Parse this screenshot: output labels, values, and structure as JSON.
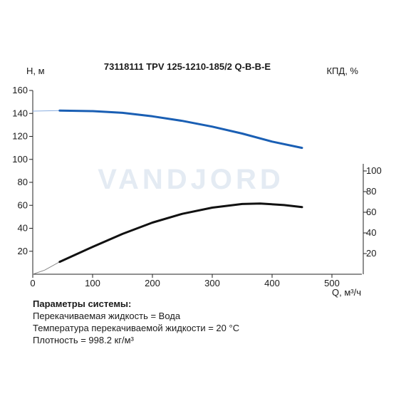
{
  "chart_data": {
    "type": "line",
    "title": "73118111 TPV 125-1210-185/2 Q-B-B-E",
    "xlabel": "Q, м³/ч",
    "ylabel_left": "H, м",
    "ylabel_right": "КПД, %",
    "watermark": "VANDJORD",
    "x_ticks": [
      "0",
      "100",
      "200",
      "300",
      "400",
      "500"
    ],
    "y_left_ticks": [
      "20",
      "40",
      "60",
      "80",
      "100",
      "120",
      "140",
      "160"
    ],
    "y_right_ticks": [
      "20",
      "40",
      "60",
      "80",
      "100"
    ],
    "xlim": [
      0,
      550
    ],
    "ylim_left": [
      0,
      160
    ],
    "ylim_right": [
      0,
      100
    ],
    "grid": false,
    "series": [
      {
        "axis": "left",
        "color": "#1a5fb4",
        "points": [
          [
            45,
            142.5
          ],
          [
            100,
            142
          ],
          [
            150,
            140.5
          ],
          [
            200,
            137.5
          ],
          [
            250,
            133.5
          ],
          [
            300,
            128.5
          ],
          [
            350,
            122.5
          ],
          [
            400,
            115.5
          ],
          [
            450,
            110
          ]
        ]
      },
      {
        "axis": "right",
        "color": "#111111",
        "points": [
          [
            45,
            12
          ],
          [
            100,
            26.5
          ],
          [
            150,
            39
          ],
          [
            200,
            50
          ],
          [
            250,
            58.5
          ],
          [
            300,
            64.5
          ],
          [
            350,
            68
          ],
          [
            380,
            68.5
          ],
          [
            420,
            67
          ],
          [
            450,
            65
          ]
        ]
      }
    ],
    "extrapolation": [
      {
        "axis": "left",
        "color": "#8aaee0",
        "points": [
          [
            0,
            142
          ],
          [
            45,
            142.5
          ]
        ]
      },
      {
        "axis": "right",
        "color": "#888888",
        "points": [
          [
            0,
            0
          ],
          [
            20,
            4
          ],
          [
            45,
            12
          ]
        ]
      }
    ]
  },
  "params": {
    "heading": "Параметры системы:",
    "liquid": "Перекачиваемая жидкость = Вода",
    "temperature": "Температура перекачиваемой жидкости = 20 °C",
    "density": "Плотность = 998.2 кг/м³"
  }
}
